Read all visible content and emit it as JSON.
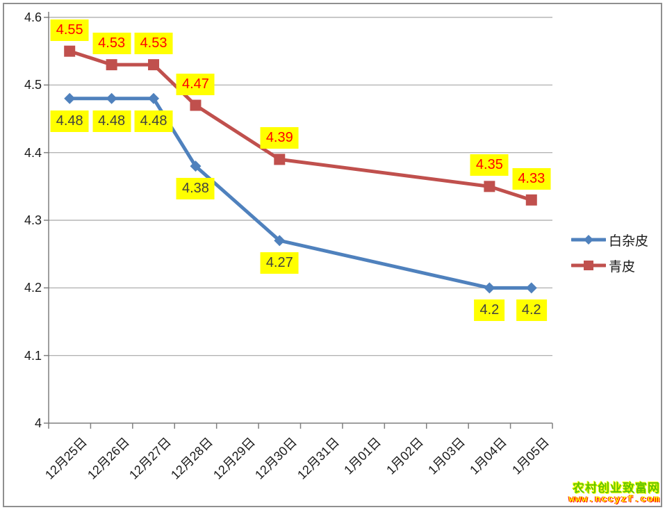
{
  "chart_data": {
    "type": "line",
    "categories": [
      "12月25日",
      "12月26日",
      "12月27日",
      "12月28日",
      "12月29日",
      "12月30日",
      "12月31日",
      "1月01日",
      "1月02日",
      "1月03日",
      "1月04日",
      "1月05日"
    ],
    "series": [
      {
        "name": "白杂皮",
        "color": "#4F81BD",
        "marker": "diamond",
        "label_color": "#404040",
        "label_position": "below",
        "values": [
          4.48,
          4.48,
          4.48,
          4.38,
          null,
          4.27,
          null,
          null,
          null,
          null,
          4.2,
          4.2
        ]
      },
      {
        "name": "青皮",
        "color": "#C0504D",
        "marker": "square",
        "label_color": "#FF0000",
        "label_position": "above",
        "values": [
          4.55,
          4.53,
          4.53,
          4.47,
          null,
          4.39,
          null,
          null,
          null,
          null,
          4.35,
          4.33
        ]
      }
    ],
    "title": "",
    "xlabel": "",
    "ylabel": "",
    "ylim": [
      4,
      4.6
    ],
    "yticks": [
      4.6,
      4.5,
      4.4,
      4.3,
      4.2,
      4.1,
      4
    ],
    "ytick_labels": [
      "4.6",
      "4.5",
      "4.4",
      "4.3",
      "4.2",
      "4.1",
      "4"
    ],
    "grid": true,
    "grid_color": "#A6A6A6",
    "axis_color": "#7F7F7F",
    "label_bg": "#FFFF00",
    "legend_position": "right"
  },
  "watermark": {
    "line1": "农村创业致富网",
    "line2": "www.nccyzf.com",
    "line1_color": "#5FC400",
    "line1_glow": "#FFFF00",
    "line2_color": "#FFFF00",
    "line2_glow": "#FF0000"
  }
}
